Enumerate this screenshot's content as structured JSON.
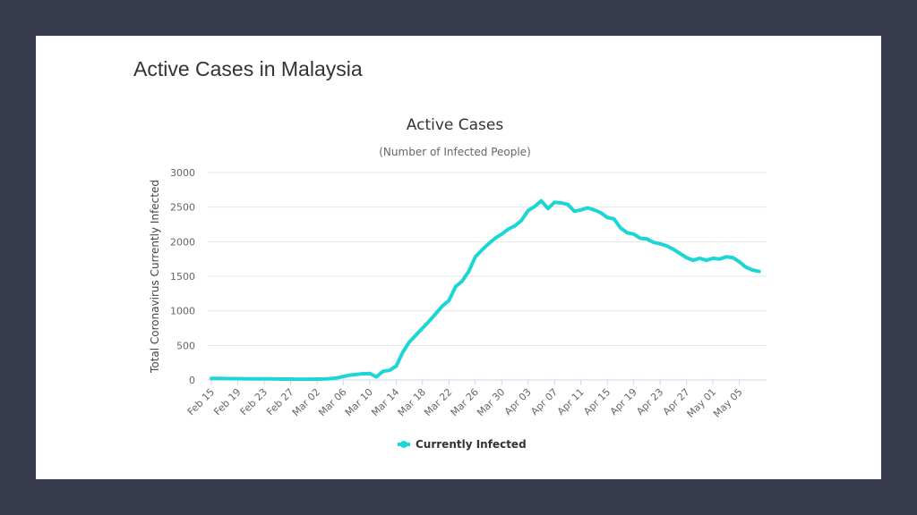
{
  "page_title": "Active Cases in Malaysia",
  "chart_data": {
    "type": "line",
    "title": "Active Cases",
    "subtitle": "(Number of Infected People)",
    "xlabel": "",
    "ylabel": "Total Coronavirus Currently Infected",
    "ylim": [
      0,
      3000
    ],
    "yticks": [
      0,
      500,
      1000,
      1500,
      2000,
      2500,
      3000
    ],
    "grid": true,
    "legend_placement": "bottom",
    "start_date": "Feb 15",
    "xtick_every_days": 4,
    "xtick_labels": [
      "Feb 15",
      "Feb 19",
      "Feb 23",
      "Feb 27",
      "Mar 02",
      "Mar 06",
      "Mar 10",
      "Mar 14",
      "Mar 18",
      "Mar 22",
      "Mar 26",
      "Mar 30",
      "Apr 03",
      "Apr 07",
      "Apr 11",
      "Apr 15",
      "Apr 19",
      "Apr 23",
      "Apr 27",
      "May 01",
      "May 05"
    ],
    "series": [
      {
        "name": "Currently Infected",
        "color": "#1ed5d5",
        "values": [
          22,
          22,
          21,
          20,
          19,
          18,
          17,
          16,
          15,
          15,
          14,
          13,
          13,
          12,
          12,
          12,
          13,
          14,
          20,
          30,
          50,
          70,
          80,
          90,
          95,
          45,
          125,
          140,
          200,
          400,
          550,
          650,
          750,
          850,
          960,
          1070,
          1150,
          1350,
          1430,
          1570,
          1780,
          1880,
          1970,
          2050,
          2110,
          2180,
          2230,
          2310,
          2450,
          2510,
          2590,
          2480,
          2570,
          2560,
          2540,
          2440,
          2460,
          2490,
          2460,
          2420,
          2350,
          2330,
          2200,
          2130,
          2110,
          2050,
          2040,
          1990,
          1970,
          1940,
          1890,
          1830,
          1770,
          1730,
          1760,
          1730,
          1760,
          1750,
          1780,
          1770,
          1710,
          1630,
          1590,
          1570
        ]
      }
    ]
  }
}
